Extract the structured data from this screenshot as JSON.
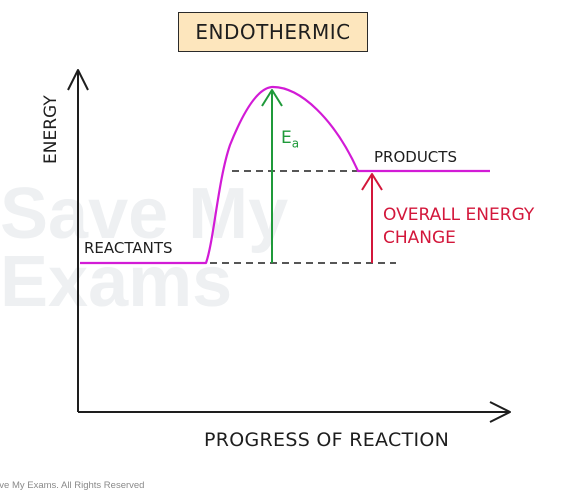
{
  "title": "ENDOTHERMIC",
  "axes": {
    "y_label": "ENERGY",
    "x_label": "PROGRESS OF REACTION"
  },
  "labels": {
    "reactants": "REACTANTS",
    "products": "PRODUCTS",
    "activation_energy": "E",
    "activation_energy_subscript": "a",
    "overall_change_line1": "OVERALL ENERGY",
    "overall_change_line2": "CHANGE"
  },
  "watermark": {
    "line1": "Save My",
    "line2": "Exams"
  },
  "copyright": "ave My Exams. All Rights Reserved",
  "colors": {
    "curve": "#d21bd6",
    "activation_arrow": "#1f9a3a",
    "overall_arrow": "#d3173b",
    "title_fill": "#fde6bd",
    "ink": "#1e1e1e"
  }
}
